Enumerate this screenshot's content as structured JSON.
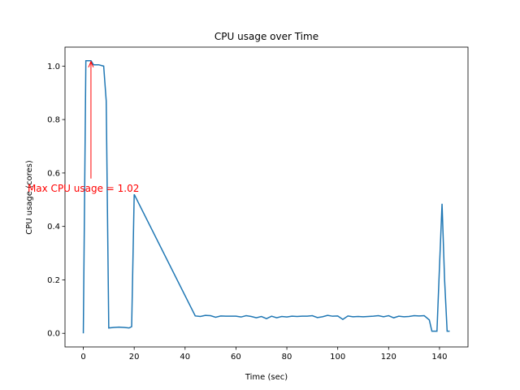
{
  "chart_data": {
    "type": "line",
    "title": "CPU usage over Time",
    "x_label": "Time (sec)",
    "y_label": "CPU usage (cores)",
    "annotation": "Max CPU usage = 1.02",
    "x": [
      0,
      1,
      3,
      4,
      6,
      8,
      9,
      10,
      12,
      14,
      16,
      18,
      19,
      20,
      44,
      46,
      48,
      50,
      52,
      54,
      56,
      58,
      60,
      62,
      64,
      66,
      68,
      70,
      72,
      74,
      76,
      78,
      80,
      82,
      84,
      86,
      88,
      90,
      92,
      94,
      96,
      98,
      100,
      102,
      104,
      106,
      108,
      110,
      112,
      114,
      116,
      118,
      120,
      122,
      124,
      126,
      128,
      130,
      132,
      134,
      136,
      137,
      139,
      140,
      141,
      142,
      143,
      144
    ],
    "series": [
      {
        "name": "CPU usage",
        "color": "#1f77b4",
        "values": [
          0,
          1.02,
          1.02,
          1.005,
          1.005,
          1.0,
          0.87,
          0.02,
          0.022,
          0.023,
          0.022,
          0.02,
          0.025,
          0.52,
          0.065,
          0.063,
          0.067,
          0.066,
          0.06,
          0.065,
          0.064,
          0.064,
          0.064,
          0.061,
          0.066,
          0.063,
          0.058,
          0.063,
          0.055,
          0.064,
          0.058,
          0.063,
          0.061,
          0.064,
          0.063,
          0.064,
          0.064,
          0.066,
          0.059,
          0.062,
          0.067,
          0.064,
          0.065,
          0.052,
          0.065,
          0.062,
          0.063,
          0.062,
          0.063,
          0.064,
          0.066,
          0.062,
          0.066,
          0.058,
          0.064,
          0.062,
          0.063,
          0.066,
          0.065,
          0.066,
          0.05,
          0.008,
          0.008,
          0.25,
          0.485,
          0.2,
          0.008,
          0.008
        ]
      }
    ],
    "annotation_color": "#ff0000",
    "xlim": [
      -7.2,
      151.2
    ],
    "xticks": [
      0,
      20,
      40,
      60,
      80,
      100,
      120,
      140
    ],
    "ylim": [
      -0.051,
      1.071
    ],
    "yticks": [
      {
        "value": 0,
        "label": "0.0"
      },
      {
        "value": 0.2,
        "label": "0.2"
      },
      {
        "value": 0.4,
        "label": "0.4"
      },
      {
        "value": 0.6,
        "label": "0.6"
      },
      {
        "value": 0.8,
        "label": "0.8"
      },
      {
        "value": 1,
        "label": "1.0"
      }
    ],
    "grid": false
  }
}
